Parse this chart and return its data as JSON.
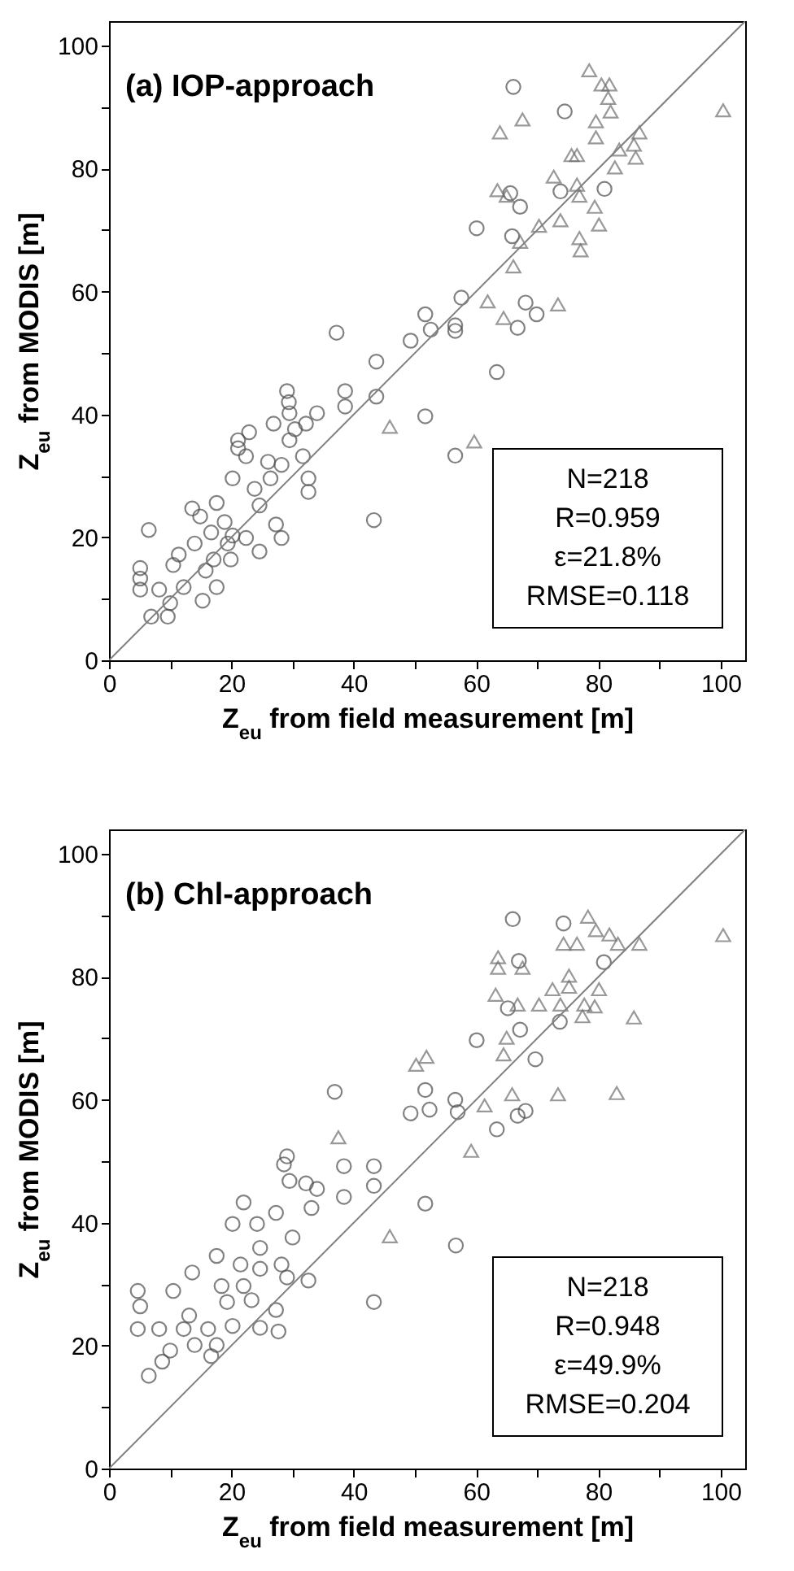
{
  "chart_data": [
    {
      "type": "scatter",
      "title": "(a) IOP-approach",
      "xlabel": "Z$_{eu}$ from field measurement [m]",
      "ylabel": "Z$_{eu}$ from MODIS [m]",
      "xlim": [
        0,
        104
      ],
      "ylim": [
        0,
        104
      ],
      "xticks": [
        0,
        {
          "value": 10,
          "label": null
        },
        20,
        {
          "value": 30,
          "label": null
        },
        40,
        {
          "value": 50,
          "label": null
        },
        60,
        {
          "value": 70,
          "label": null
        },
        80,
        {
          "value": 90,
          "label": null
        },
        100
      ],
      "yticks": [
        0,
        {
          "value": 10,
          "label": null
        },
        20,
        {
          "value": 30,
          "label": null
        },
        40,
        {
          "value": 50,
          "label": null
        },
        60,
        {
          "value": 70,
          "label": null
        },
        80,
        {
          "value": 90,
          "label": null
        },
        100
      ],
      "grid": false,
      "series": [
        {
          "marker": "circle",
          "color": "#4d4d4d",
          "x": [
            66.1,
            74.5,
            73.8,
            81,
            65.6,
            67.2,
            60.1,
            65.9,
            57.6,
            68.1,
            69.9,
            66.8,
            51.7,
            52.6,
            49.3,
            56.6,
            56.6,
            37.2,
            43.7,
            63.4,
            43.7,
            38.6,
            38.6,
            51.7,
            29.1,
            29.4,
            34,
            56.6,
            43.3,
            29.5,
            32.2,
            29.5,
            31.7,
            32.6,
            32.6,
            28.2,
            24.6,
            21.1,
            21.1,
            22.4,
            22.9,
            26,
            28.2,
            20.2,
            23.8,
            24.6,
            13.6,
            17.6,
            18.9,
            20.2,
            16.7,
            6.5,
            14,
            11.4,
            10.5,
            15.8,
            17.6,
            15.3,
            5.1,
            5.1,
            5.1,
            8.2,
            6.9,
            9.6,
            10,
            12.2,
            17.1,
            19.9,
            22.4,
            27.3,
            19.4,
            14.9,
            26.4,
            26.9,
            30.4
          ],
          "values": [
            93.3,
            89.3,
            76.3,
            76.7,
            76,
            73.8,
            70.3,
            69,
            59,
            58.2,
            56.3,
            54.1,
            56.3,
            53.8,
            52,
            54.5,
            53.6,
            53.3,
            48.6,
            46.9,
            42.9,
            43.8,
            41.3,
            39.7,
            43.8,
            42,
            40.2,
            33.3,
            22.8,
            40.2,
            38.5,
            35.8,
            33.2,
            29.6,
            27.4,
            19.9,
            17.7,
            35.8,
            34.5,
            33.2,
            37.1,
            32.3,
            31.8,
            29.6,
            27.9,
            25.2,
            24.7,
            25.6,
            22.5,
            20.3,
            20.8,
            21.2,
            19,
            17.2,
            15.5,
            14.6,
            11.9,
            9.7,
            15,
            13.3,
            11.5,
            11.5,
            7.1,
            7.1,
            9.3,
            11.9,
            16.4,
            16.4,
            19.9,
            22.1,
            19,
            23.4,
            29.6,
            38.5,
            37.6
          ]
        },
        {
          "marker": "triangle",
          "color": "#6e6e6e",
          "x": [
            78.5,
            80.5,
            81.8,
            81.6,
            82,
            100.4,
            67.6,
            63.9,
            79.6,
            79.6,
            86.7,
            85.8,
            83.4,
            86.1,
            82.7,
            75.6,
            76.5,
            72.7,
            76.5,
            76.9,
            63.5,
            65,
            79.4,
            80.1,
            73.8,
            70.3,
            76.9,
            77.1,
            67.2,
            66.1,
            61.9,
            64.5,
            73.4,
            45.9,
            59.7
          ],
          "values": [
            96,
            93.7,
            93.7,
            91.5,
            89.3,
            89.5,
            88,
            85.9,
            87.7,
            85.1,
            85.9,
            83.9,
            83.1,
            81.8,
            80.2,
            82.2,
            82.2,
            78.7,
            77.4,
            75.6,
            76.5,
            75.6,
            73.8,
            70.9,
            71.6,
            70.7,
            68.7,
            66.7,
            68.1,
            64.1,
            58.4,
            55.7,
            57.9,
            38,
            35.6
          ]
        },
        {
          "type": "line",
          "color": "#808080",
          "x": [
            0,
            104
          ],
          "values": [
            0,
            104
          ]
        }
      ],
      "annotations": [
        "N=218",
        "R=0.959",
        "ε=21.8%",
        "RMSE=0.118"
      ]
    },
    {
      "type": "scatter",
      "title": "(b) Chl-approach",
      "xlabel": "Z$_{eu}$ from field measurement [m]",
      "ylabel": "Z$_{eu}$ from MODIS [m]",
      "xlim": [
        0,
        104
      ],
      "ylim": [
        0,
        104
      ],
      "xticks": [
        0,
        {
          "value": 10,
          "label": null
        },
        20,
        {
          "value": 30,
          "label": null
        },
        40,
        {
          "value": 50,
          "label": null
        },
        60,
        {
          "value": 70,
          "label": null
        },
        80,
        {
          "value": 90,
          "label": null
        },
        100
      ],
      "yticks": [
        0,
        {
          "value": 10,
          "label": null
        },
        20,
        {
          "value": 30,
          "label": null
        },
        40,
        {
          "value": 50,
          "label": null
        },
        60,
        {
          "value": 70,
          "label": null
        },
        80,
        {
          "value": 90,
          "label": null
        },
        100
      ],
      "grid": false,
      "series": [
        {
          "marker": "circle",
          "color": "#4d4d4d",
          "x": [
            66,
            74.3,
            80.9,
            67,
            65.2,
            67.2,
            60.1,
            73.7,
            69.7,
            36.9,
            51.7,
            56.6,
            52.4,
            49.3,
            57,
            68.1,
            66.8,
            63.4,
            38.4,
            43.3,
            43.3,
            38.4,
            51.7,
            56.7,
            43.3,
            28.6,
            29.5,
            32.2,
            34,
            33.1,
            22,
            20.2,
            24.2,
            27.3,
            30,
            24.7,
            28.2,
            32.6,
            29.1,
            24.7,
            21.5,
            17.6,
            13.6,
            10.5,
            4.7,
            5.1,
            4.7,
            8.2,
            12.2,
            16.2,
            20.2,
            19.3,
            23.3,
            27.3,
            27.7,
            24.7,
            13.1,
            8.7,
            6.5,
            10,
            14,
            16.7,
            17.6,
            22,
            18.4,
            29.1
          ],
          "values": [
            89.4,
            88.7,
            82.4,
            82.6,
            74.9,
            71.4,
            69.7,
            72.7,
            66.6,
            61.3,
            61.6,
            60,
            58.4,
            57.8,
            58,
            58.2,
            57.4,
            55.2,
            49.2,
            49.2,
            46,
            44.2,
            43.1,
            36.3,
            27.1,
            49.5,
            46.8,
            46.4,
            45.5,
            42.4,
            43.3,
            39.8,
            39.8,
            41.6,
            37.6,
            35.9,
            33.2,
            30.6,
            31.1,
            32.5,
            33.2,
            34.6,
            31.9,
            28.9,
            28.9,
            26.4,
            22.7,
            22.7,
            22.7,
            22.7,
            23.2,
            27.1,
            27.4,
            25.8,
            22.3,
            22.9,
            24.9,
            17.4,
            15.1,
            19.2,
            20.1,
            18.3,
            20.1,
            29.7,
            29.7,
            50.8
          ]
        },
        {
          "marker": "triangle",
          "color": "#6e6e6e",
          "x": [
            78.3,
            79.6,
            81.8,
            76.5,
            74.3,
            83.2,
            86.7,
            100.4,
            63.6,
            67.6,
            63.6,
            75.2,
            75.2,
            63.2,
            72.5,
            80.1,
            66.8,
            70.3,
            73.8,
            77.7,
            79.4,
            77.4,
            85.8,
            65,
            64.5,
            51.9,
            50.2,
            65.9,
            61.4,
            73.4,
            83,
            37.5,
            59.2,
            45.9
          ],
          "values": [
            89.8,
            87.6,
            86.9,
            85.4,
            85.4,
            85.4,
            85.4,
            86.8,
            83.2,
            81.5,
            81.5,
            80.2,
            78.4,
            77.1,
            78,
            78,
            75.5,
            75.5,
            75.5,
            75.5,
            75.2,
            73.6,
            73.4,
            70.1,
            67.4,
            67,
            65.7,
            60.9,
            59.1,
            60.9,
            61.1,
            53.9,
            51.7,
            37.8
          ]
        },
        {
          "type": "line",
          "color": "#808080",
          "x": [
            0,
            104
          ],
          "values": [
            0,
            104
          ]
        }
      ],
      "annotations": [
        "N=218",
        "R=0.948",
        "ε=49.9%",
        "RMSE=0.204"
      ]
    }
  ]
}
